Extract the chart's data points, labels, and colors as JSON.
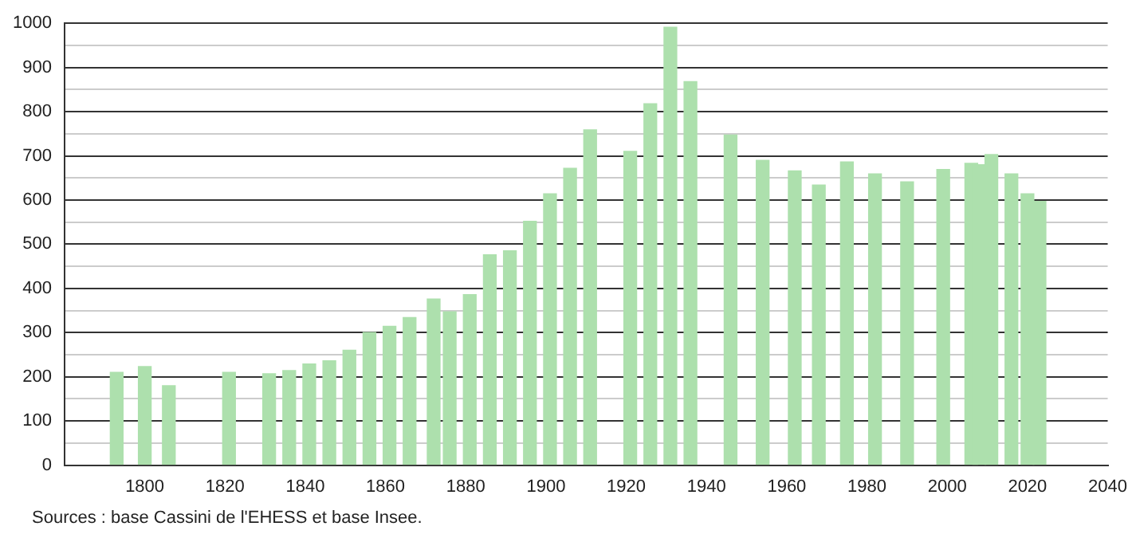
{
  "chart_data": {
    "type": "bar",
    "x": [
      1793,
      1800,
      1806,
      1821,
      1831,
      1836,
      1841,
      1846,
      1851,
      1856,
      1861,
      1866,
      1872,
      1876,
      1881,
      1886,
      1891,
      1896,
      1901,
      1906,
      1911,
      1921,
      1926,
      1931,
      1936,
      1946,
      1954,
      1962,
      1968,
      1975,
      1982,
      1990,
      1999,
      2006,
      2008,
      2011,
      2016,
      2020,
      2023
    ],
    "values": [
      210,
      223,
      180,
      210,
      207,
      214,
      229,
      236,
      260,
      300,
      314,
      334,
      376,
      347,
      386,
      476,
      485,
      552,
      614,
      672,
      759,
      710,
      818,
      991,
      868,
      747,
      690,
      666,
      634,
      686,
      659,
      641,
      669,
      683,
      680,
      703,
      659,
      614,
      597
    ],
    "color": "#ade0ad",
    "xlim": [
      1780,
      2040
    ],
    "xticks": [
      1800,
      1820,
      1840,
      1860,
      1880,
      1900,
      1920,
      1940,
      1960,
      1980,
      2000,
      2020,
      2040
    ],
    "ylim": [
      0,
      1000
    ],
    "yticks": [
      0,
      {
        "value": 50,
        "label": null
      },
      100,
      {
        "value": 150,
        "label": null
      },
      200,
      {
        "value": 250,
        "label": null
      },
      300,
      {
        "value": 350,
        "label": null
      },
      400,
      {
        "value": 450,
        "label": null
      },
      500,
      {
        "value": 550,
        "label": null
      },
      600,
      {
        "value": 650,
        "label": null
      },
      700,
      {
        "value": 750,
        "label": null
      },
      800,
      {
        "value": 850,
        "label": null
      },
      900,
      {
        "value": 950,
        "label": null
      },
      1000
    ],
    "grid": "y",
    "annotations": [
      "Sources : base Cassini de l'EHESS et base Insee."
    ]
  }
}
